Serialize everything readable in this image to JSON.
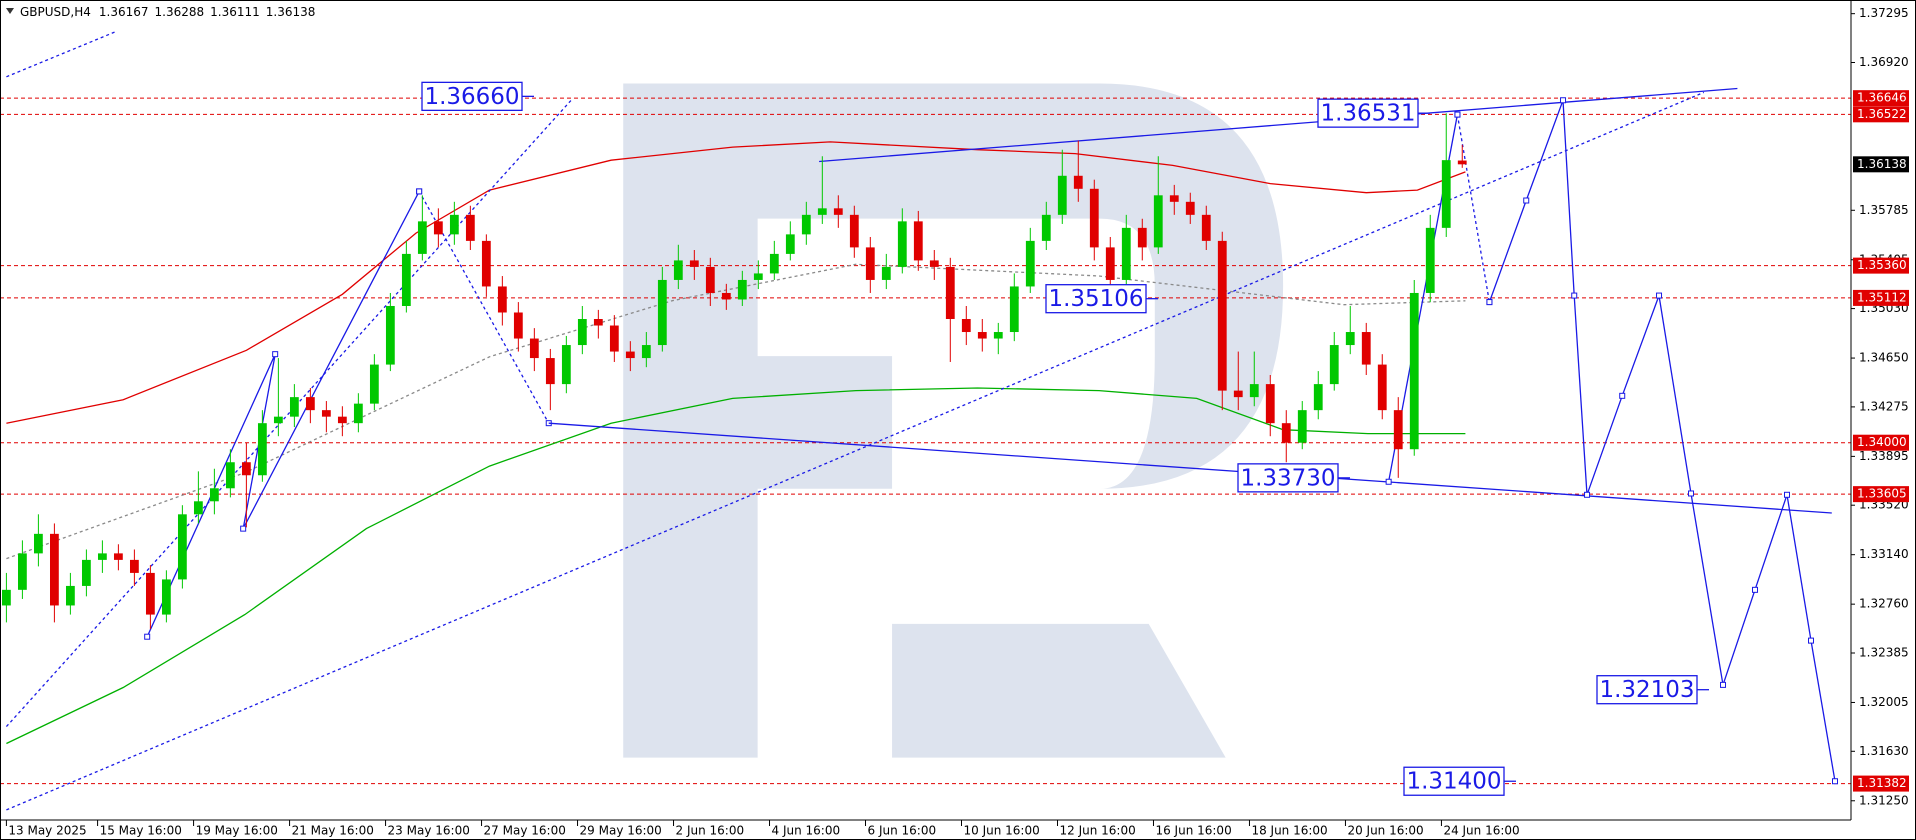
{
  "chart_data": {
    "type": "candlestick",
    "symbol": "GBPUSD,H4",
    "quote": [
      1.36167,
      1.36288,
      1.36111,
      1.36138
    ],
    "up_color": "#00c800",
    "down_color": "#e00000",
    "x": [
      0,
      1,
      2,
      3,
      4,
      5,
      6,
      7,
      8,
      9,
      10,
      11,
      12,
      13,
      14,
      15,
      16,
      17,
      18,
      19,
      20,
      21,
      22,
      23,
      24,
      25,
      26,
      27,
      28,
      29,
      30,
      31,
      32,
      33,
      34,
      35,
      36,
      37,
      38,
      39,
      40,
      41,
      42,
      43,
      44,
      45,
      46,
      47,
      48,
      49,
      50,
      51,
      52,
      53,
      54,
      55,
      56,
      57,
      58,
      59,
      60,
      61,
      62,
      63,
      64,
      65,
      66,
      67,
      68,
      69,
      70,
      71,
      72,
      73,
      74,
      75,
      76,
      77,
      78,
      79,
      80,
      81,
      82,
      83,
      84,
      85,
      86,
      87,
      88,
      89,
      90,
      91
    ],
    "open": [
      1.3275,
      1.3287,
      1.3315,
      1.333,
      1.3275,
      1.329,
      1.331,
      1.3315,
      1.331,
      1.33,
      1.3268,
      1.3295,
      1.3345,
      1.3355,
      1.3365,
      1.3385,
      1.3375,
      1.3415,
      1.342,
      1.3435,
      1.3425,
      1.342,
      1.3415,
      1.343,
      1.346,
      1.3505,
      1.3545,
      1.357,
      1.356,
      1.3575,
      1.3555,
      1.352,
      1.35,
      1.348,
      1.3465,
      1.3445,
      1.3475,
      1.3495,
      1.349,
      1.347,
      1.3465,
      1.3475,
      1.3525,
      1.354,
      1.3535,
      1.3515,
      1.351,
      1.3525,
      1.353,
      1.3545,
      1.356,
      1.3575,
      1.358,
      1.3575,
      1.355,
      1.3525,
      1.3535,
      1.357,
      1.354,
      1.3535,
      1.3495,
      1.3485,
      1.348,
      1.3485,
      1.352,
      1.3555,
      1.3575,
      1.3605,
      1.3595,
      1.355,
      1.3525,
      1.3565,
      1.355,
      1.359,
      1.3585,
      1.3575,
      1.3555,
      1.344,
      1.3435,
      1.3445,
      1.3415,
      1.34,
      1.3425,
      1.3445,
      1.3475,
      1.3485,
      1.346,
      1.3425,
      1.3395,
      1.3515,
      1.3565,
      1.36167
    ],
    "high": [
      1.33,
      1.3325,
      1.3345,
      1.3338,
      1.33,
      1.3318,
      1.3325,
      1.3322,
      1.3318,
      1.3306,
      1.3302,
      1.3352,
      1.3378,
      1.338,
      1.3395,
      1.34,
      1.3425,
      1.3465,
      1.3445,
      1.3442,
      1.3432,
      1.3428,
      1.3438,
      1.3468,
      1.3515,
      1.3555,
      1.359,
      1.358,
      1.3585,
      1.3582,
      1.356,
      1.3528,
      1.3508,
      1.3488,
      1.3472,
      1.3482,
      1.3505,
      1.3502,
      1.3498,
      1.3478,
      1.3485,
      1.3535,
      1.3552,
      1.3548,
      1.3542,
      1.3522,
      1.3532,
      1.354,
      1.3555,
      1.357,
      1.3585,
      1.362,
      1.359,
      1.3582,
      1.3558,
      1.3545,
      1.358,
      1.3578,
      1.3548,
      1.3542,
      1.3505,
      1.3495,
      1.3492,
      1.353,
      1.3565,
      1.3585,
      1.3625,
      1.3632,
      1.3602,
      1.3558,
      1.3575,
      1.3572,
      1.362,
      1.3598,
      1.3592,
      1.3582,
      1.3562,
      1.347,
      1.347,
      1.3452,
      1.3425,
      1.3432,
      1.3455,
      1.3485,
      1.3505,
      1.3492,
      1.3468,
      1.3435,
      1.3525,
      1.3575,
      1.3653,
      1.36288
    ],
    "low": [
      1.3262,
      1.328,
      1.3305,
      1.3262,
      1.3268,
      1.3282,
      1.33,
      1.3302,
      1.329,
      1.3257,
      1.3262,
      1.3288,
      1.3338,
      1.3345,
      1.3358,
      1.3335,
      1.337,
      1.3405,
      1.3412,
      1.3415,
      1.3408,
      1.3405,
      1.3408,
      1.3425,
      1.3455,
      1.35,
      1.354,
      1.355,
      1.3552,
      1.3548,
      1.3512,
      1.349,
      1.347,
      1.3455,
      1.3425,
      1.3438,
      1.3468,
      1.348,
      1.3462,
      1.3455,
      1.3458,
      1.347,
      1.3518,
      1.3525,
      1.3505,
      1.3502,
      1.3505,
      1.3518,
      1.3525,
      1.354,
      1.3552,
      1.3568,
      1.3565,
      1.3542,
      1.3515,
      1.3518,
      1.353,
      1.3532,
      1.3525,
      1.3462,
      1.3475,
      1.347,
      1.3468,
      1.3478,
      1.3515,
      1.3548,
      1.3568,
      1.3585,
      1.354,
      1.3518,
      1.352,
      1.354,
      1.3545,
      1.3575,
      1.3568,
      1.3548,
      1.3425,
      1.3425,
      1.3428,
      1.3405,
      1.3385,
      1.3395,
      1.3418,
      1.344,
      1.3468,
      1.3452,
      1.3418,
      1.3373,
      1.339,
      1.3508,
      1.3558,
      1.36111
    ],
    "close": [
      1.3287,
      1.3315,
      1.333,
      1.3275,
      1.329,
      1.331,
      1.3315,
      1.331,
      1.33,
      1.3268,
      1.3295,
      1.3345,
      1.3355,
      1.3365,
      1.3385,
      1.3375,
      1.3415,
      1.342,
      1.3435,
      1.3425,
      1.342,
      1.3415,
      1.343,
      1.346,
      1.3505,
      1.3545,
      1.357,
      1.356,
      1.3575,
      1.3555,
      1.352,
      1.35,
      1.348,
      1.3465,
      1.3445,
      1.3475,
      1.3495,
      1.349,
      1.347,
      1.3465,
      1.3475,
      1.3525,
      1.354,
      1.3535,
      1.3515,
      1.351,
      1.3525,
      1.353,
      1.3545,
      1.356,
      1.3575,
      1.358,
      1.3575,
      1.355,
      1.3525,
      1.3535,
      1.357,
      1.354,
      1.3535,
      1.3495,
      1.3485,
      1.348,
      1.3485,
      1.352,
      1.3555,
      1.3575,
      1.3605,
      1.3595,
      1.355,
      1.3525,
      1.3565,
      1.355,
      1.359,
      1.3585,
      1.3575,
      1.3555,
      1.344,
      1.3435,
      1.3445,
      1.3415,
      1.34,
      1.3425,
      1.3445,
      1.3475,
      1.3485,
      1.346,
      1.3425,
      1.3395,
      1.3515,
      1.3565,
      1.3617,
      1.36138
    ],
    "xlim": [
      -0.4,
      115.3
    ],
    "xticks": [
      {
        "value": 0,
        "label": "13 May 2025"
      },
      {
        "value": 5.7,
        "label": "15 May 16:00"
      },
      {
        "value": 11.7,
        "label": "19 May 16:00"
      },
      {
        "value": 17.7,
        "label": "21 May 16:00"
      },
      {
        "value": 23.7,
        "label": "23 May 16:00"
      },
      {
        "value": 29.7,
        "label": "27 May 16:00"
      },
      {
        "value": 35.7,
        "label": "29 May 16:00"
      },
      {
        "value": 41.7,
        "label": "2 Jun 16:00"
      },
      {
        "value": 47.7,
        "label": "4 Jun 16:00"
      },
      {
        "value": 53.7,
        "label": "6 Jun 16:00"
      },
      {
        "value": 59.7,
        "label": "10 Jun 16:00"
      },
      {
        "value": 65.7,
        "label": "12 Jun 16:00"
      },
      {
        "value": 71.7,
        "label": "16 Jun 16:00"
      },
      {
        "value": 77.7,
        "label": "18 Jun 16:00"
      },
      {
        "value": 83.7,
        "label": "20 Jun 16:00"
      },
      {
        "value": 89.7,
        "label": "24 Jun 16:00"
      }
    ],
    "ylim": [
      1.3111,
      1.374
    ],
    "yticks": [
      1.37295,
      {
        "value": 1.3692,
        "label": "1.36920"
      },
      1.35785,
      1.35405,
      {
        "value": 1.3503,
        "label": "1.35030"
      },
      {
        "value": 1.3465,
        "label": "1.34650"
      },
      1.34275,
      1.33895,
      {
        "value": 1.3352,
        "label": "1.33520"
      },
      {
        "value": 1.3314,
        "label": "1.33140"
      },
      {
        "value": 1.3276,
        "label": "1.32760"
      },
      1.32385,
      1.32005,
      {
        "value": 1.3163,
        "label": "1.31630"
      },
      {
        "value": 1.3125,
        "label": "1.31250"
      }
    ],
    "levels": {
      "color": "#e00000",
      "values": [
        1.36646,
        1.36522,
        {
          "value": 1.3536,
          "label": "1.35360"
        },
        1.35112,
        {
          "value": 1.34,
          "label": "1.34000"
        },
        1.33605,
        1.31382
      ]
    },
    "last_price": 1.36138,
    "overlays": [
      {
        "color": "#e00000",
        "dashed": false,
        "markers": false,
        "x": [
          0,
          7.3,
          15,
          21,
          25.6,
          30.2,
          37.8,
          45.4,
          51.5,
          60.7,
          66.8,
          72.9,
          79,
          85,
          88.2,
          91.2
        ],
        "values": [
          1.3415,
          1.3433,
          1.3471,
          1.3514,
          1.3561,
          1.3594,
          1.3617,
          1.3627,
          1.3631,
          1.3625,
          1.3622,
          1.3613,
          1.3599,
          1.3592,
          1.3594,
          1.3608
        ]
      },
      {
        "color": "#00b000",
        "dashed": false,
        "markers": false,
        "x": [
          0,
          7.3,
          14.9,
          22.5,
          30.2,
          37.8,
          45.4,
          53.1,
          60.7,
          68.3,
          74.4,
          79.8,
          85.1,
          91.2
        ],
        "values": [
          1.3169,
          1.3212,
          1.3268,
          1.3334,
          1.3382,
          1.3415,
          1.3434,
          1.344,
          1.3442,
          1.344,
          1.3434,
          1.341,
          1.3407,
          1.3407
        ]
      },
      {
        "color": "#8a8a8a",
        "dashed": true,
        "markers": false,
        "x": [
          0,
          14.9,
          30.2,
          41.6,
          53.1,
          68.3,
          83.6,
          91.2
        ],
        "values": [
          1.3311,
          1.3377,
          1.3466,
          1.3509,
          1.3537,
          1.3528,
          1.3506,
          1.3509
        ]
      },
      {
        "color": "#1a1ae6",
        "dashed": true,
        "markers": false,
        "x": [
          0,
          106.1
        ],
        "values": [
          1.3118,
          1.3669
        ]
      },
      {
        "color": "#1a1ae6",
        "dashed": true,
        "markers": false,
        "x": [
          0,
          6.9
        ],
        "values": [
          1.3681,
          1.3716
        ]
      },
      {
        "color": "#1a1ae6",
        "dashed": true,
        "markers": false,
        "x": [
          0,
          35.3
        ],
        "values": [
          1.3182,
          1.3663
        ]
      },
      {
        "color": "#1a1ae6",
        "dashed": false,
        "markers": true,
        "x": [
          8.8,
          16.8,
          14.8,
          25.8
        ],
        "values": [
          1.3251,
          1.3468,
          1.3334,
          1.3593
        ]
      },
      {
        "color": "#1a1ae6",
        "dashed": true,
        "markers": true,
        "x": [
          25.8,
          33.9
        ],
        "values": [
          1.3593,
          1.3415
        ]
      },
      {
        "color": "#1a1ae6",
        "dashed": false,
        "markers": false,
        "x": [
          33.9,
          114.1
        ],
        "values": [
          1.3415,
          1.3346
        ]
      },
      {
        "color": "#1a1ae6",
        "dashed": false,
        "markers": false,
        "x": [
          50.8,
          108.2
        ],
        "values": [
          1.3616,
          1.3672
        ]
      },
      {
        "color": "#1a1ae6",
        "dashed": false,
        "markers": true,
        "x": [
          86.4,
          90.7
        ],
        "values": [
          1.337,
          1.3652
        ]
      },
      {
        "color": "#1a1ae6",
        "dashed": true,
        "markers": true,
        "x": [
          90.7,
          92.7
        ],
        "values": [
          1.3652,
          1.3508
        ]
      },
      {
        "color": "#1a1ae6",
        "dashed": false,
        "markers": true,
        "x": [
          92.7,
          95,
          97.3,
          98,
          98.8,
          101,
          103.3,
          105.3,
          107.3,
          109.3,
          111.3,
          112.8,
          114.3
        ],
        "values": [
          1.3508,
          1.3586,
          1.3663,
          1.3513,
          1.336,
          1.3436,
          1.3513,
          1.3361,
          1.3214,
          1.3287,
          1.336,
          1.3248,
          1.314
        ]
      }
    ],
    "annotations": [
      {
        "value": 1.3666,
        "label": "1.36660"
      },
      {
        "value": 1.36531,
        "label": "1.36531"
      },
      {
        "value": 1.35106,
        "label": "1.35106"
      },
      {
        "value": 1.3373,
        "label": "1.33730"
      },
      {
        "value": 1.32103,
        "label": "1.32103"
      },
      {
        "value": 1.314,
        "label": "1.31400"
      }
    ],
    "annotation_color": "#1a1ae6"
  }
}
